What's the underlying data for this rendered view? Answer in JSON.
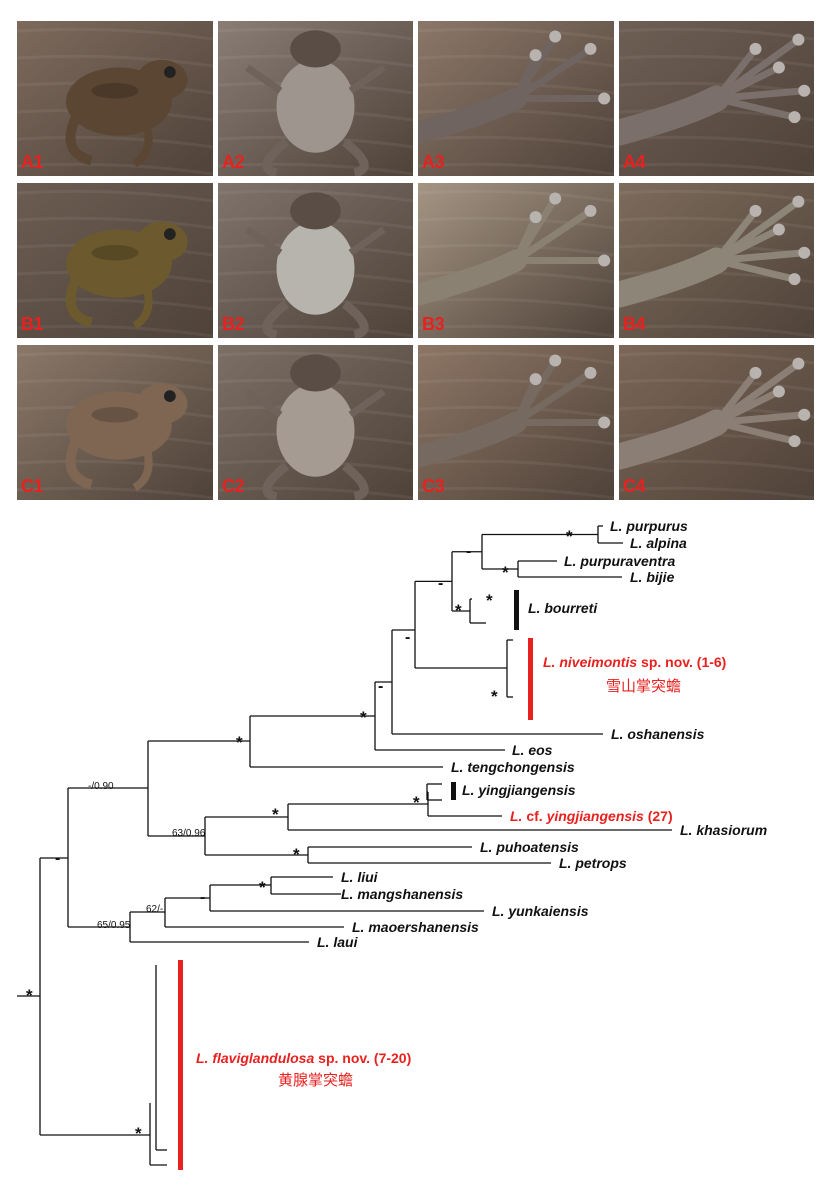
{
  "photo_grid": {
    "panels": [
      {
        "id": "A1",
        "label": "A1",
        "row": 0,
        "col": 0,
        "view": "dorsolateral",
        "bg": "#7d6a5d",
        "body": "#5b4633"
      },
      {
        "id": "A2",
        "label": "A2",
        "row": 0,
        "col": 1,
        "view": "ventral",
        "bg": "#8a7d75",
        "body": "#9f958f"
      },
      {
        "id": "A3",
        "label": "A3",
        "row": 0,
        "col": 2,
        "view": "hand",
        "bg": "#8b7769",
        "body": "#6f6460"
      },
      {
        "id": "A4",
        "label": "A4",
        "row": 0,
        "col": 3,
        "view": "foot",
        "bg": "#6e5f55",
        "body": "#7a6f6a"
      },
      {
        "id": "B1",
        "label": "B1",
        "row": 1,
        "col": 0,
        "view": "dorsolateral",
        "bg": "#6b5d52",
        "body": "#6c5a2e"
      },
      {
        "id": "B2",
        "label": "B2",
        "row": 1,
        "col": 1,
        "view": "ventral",
        "bg": "#7f736b",
        "body": "#b7b4ad"
      },
      {
        "id": "B3",
        "label": "B3",
        "row": 1,
        "col": 2,
        "view": "hand",
        "bg": "#a49583",
        "body": "#8a8172"
      },
      {
        "id": "B4",
        "label": "B4",
        "row": 1,
        "col": 3,
        "view": "foot",
        "bg": "#7d6c5c",
        "body": "#8e8579"
      },
      {
        "id": "C1",
        "label": "C1",
        "row": 2,
        "col": 0,
        "view": "dorsolateral",
        "bg": "#8a7869",
        "body": "#7e6653"
      },
      {
        "id": "C2",
        "label": "C2",
        "row": 2,
        "col": 1,
        "view": "ventral",
        "bg": "#7c7066",
        "body": "#a59b93"
      },
      {
        "id": "C3",
        "label": "C3",
        "row": 2,
        "col": 2,
        "view": "hand",
        "bg": "#8d7665",
        "body": "#766960"
      },
      {
        "id": "C4",
        "label": "C4",
        "row": 2,
        "col": 3,
        "view": "foot",
        "bg": "#7b6657",
        "body": "#8a7e75"
      }
    ]
  },
  "tree": {
    "colors": {
      "accent": "#e8211f",
      "ink": "#111111"
    },
    "taxa": [
      {
        "id": "purpurus",
        "genus": "L.",
        "species": "purpurus"
      },
      {
        "id": "alpina",
        "genus": "L.",
        "species": "alpina"
      },
      {
        "id": "purpuraventra",
        "genus": "L.",
        "species": "purpuraventra"
      },
      {
        "id": "bijie",
        "genus": "L.",
        "species": "bijie"
      },
      {
        "id": "bourreti",
        "genus": "L.",
        "species": "bourreti"
      },
      {
        "id": "niveimontis",
        "genus": "L.",
        "species": "niveimontis",
        "suffix": "sp. nov. (1-6)",
        "chinese": "雪山掌突蟾",
        "highlight": true
      },
      {
        "id": "oshanensis",
        "genus": "L.",
        "species": "oshanensis"
      },
      {
        "id": "eos",
        "genus": "L.",
        "species": "eos"
      },
      {
        "id": "tengchongensis",
        "genus": "L.",
        "species": "tengchongensis"
      },
      {
        "id": "yingjiangensis",
        "genus": "L.",
        "species": "yingjiangensis"
      },
      {
        "id": "cf_yingjiangensis",
        "genus": "L.",
        "cf": "cf.",
        "species": "yingjiangensis",
        "suffix": "(27)",
        "highlight": true
      },
      {
        "id": "khasiorum",
        "genus": "L.",
        "species": "khasiorum"
      },
      {
        "id": "puhoatensis",
        "genus": "L.",
        "species": "puhoatensis"
      },
      {
        "id": "petrops",
        "genus": "L.",
        "species": "petrops"
      },
      {
        "id": "liui",
        "genus": "L.",
        "species": "liui"
      },
      {
        "id": "mangshanensis",
        "genus": "L.",
        "species": "mangshanensis"
      },
      {
        "id": "yunkaiensis",
        "genus": "L.",
        "species": "yunkaiensis"
      },
      {
        "id": "maoershanensis",
        "genus": "L.",
        "species": "maoershanensis"
      },
      {
        "id": "laui",
        "genus": "L.",
        "species": "laui"
      },
      {
        "id": "flaviglandulosa",
        "genus": "L.",
        "species": "flaviglandulosa",
        "suffix": "sp. nov. (7-20)",
        "chinese": "黄腺掌突蟾",
        "highlight": true
      }
    ],
    "node_supports": [
      {
        "id": "n_purp_alp",
        "text": "*"
      },
      {
        "id": "n_pv_bij",
        "text": "*"
      },
      {
        "id": "n_top4",
        "text": "-"
      },
      {
        "id": "n_bour_in",
        "text": "*"
      },
      {
        "id": "n_bour",
        "text": "*"
      },
      {
        "id": "n_top_bour",
        "text": "-"
      },
      {
        "id": "n_top_niv",
        "text": "-"
      },
      {
        "id": "n_niv",
        "text": "*"
      },
      {
        "id": "n_top_osh",
        "text": "-"
      },
      {
        "id": "n_top_eos",
        "text": "*"
      },
      {
        "id": "n_top_teng",
        "text": "*"
      },
      {
        "id": "n_big",
        "text": "-/0.90"
      },
      {
        "id": "n_ying_in",
        "text": "*"
      },
      {
        "id": "n_ying_kha",
        "text": "*"
      },
      {
        "id": "n_puh",
        "text": "*"
      },
      {
        "id": "n_yk_grp",
        "text": "63/0.96"
      },
      {
        "id": "n_liu",
        "text": "*"
      },
      {
        "id": "n_liu_yun",
        "text": "-"
      },
      {
        "id": "n_liu_mao",
        "text": "62/-"
      },
      {
        "id": "n_lower",
        "text": "65/0.95"
      },
      {
        "id": "n_ingroup",
        "text": "-"
      },
      {
        "id": "n_root",
        "text": "*"
      },
      {
        "id": "n_flav",
        "text": "*"
      }
    ]
  }
}
